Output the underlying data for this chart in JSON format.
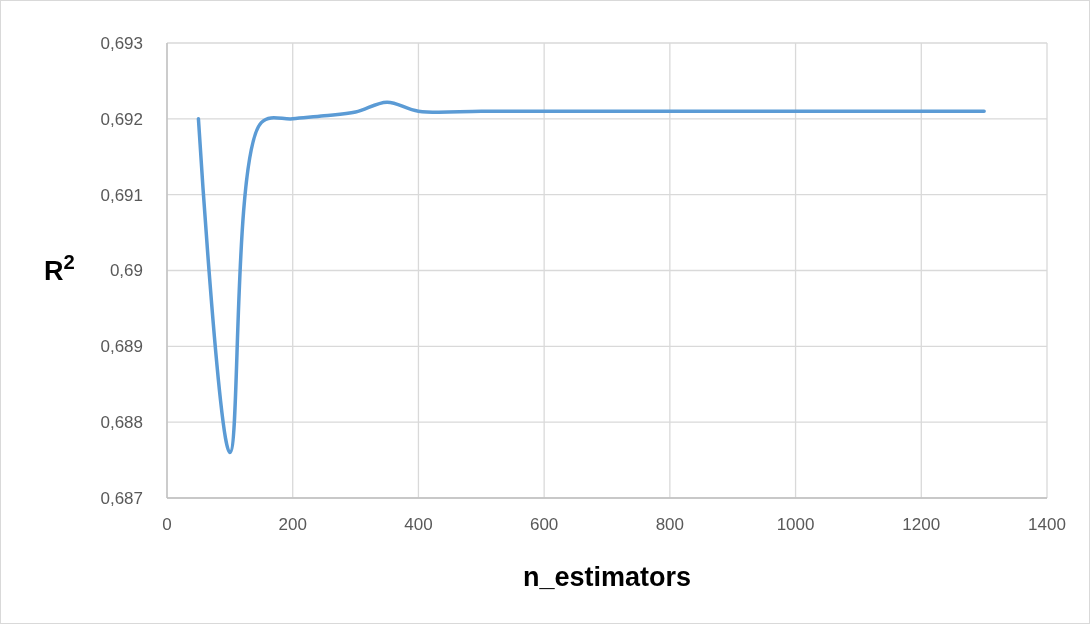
{
  "chart_data": {
    "type": "line",
    "xlabel": "n_estimators",
    "ylabel": "R$^{2}$",
    "x": [
      50,
      100,
      150,
      200,
      250,
      300,
      350,
      400,
      500,
      600,
      700,
      800,
      900,
      1000,
      1100,
      1200,
      1300
    ],
    "series": [
      {
        "color": "#5b9bd5",
        "values": [
          0.692,
          0.6876,
          0.69195,
          0.692,
          0.69204,
          0.69209,
          0.69222,
          0.6921,
          0.6921,
          0.6921,
          0.6921,
          0.6921,
          0.6921,
          0.6921,
          0.6921,
          0.6921,
          0.6921
        ]
      }
    ],
    "xlim": [
      0,
      1400
    ],
    "xticks": [
      0,
      200,
      400,
      600,
      800,
      1000,
      1200,
      1400
    ],
    "ylim": [
      0.687,
      0.693
    ],
    "yticks": [
      {
        "value": 0.687,
        "label": "0,687"
      },
      {
        "value": 0.688,
        "label": "0,688"
      },
      {
        "value": 0.689,
        "label": "0,689"
      },
      {
        "value": 0.69,
        "label": "0,69"
      },
      {
        "value": 0.691,
        "label": "0,691"
      },
      {
        "value": 0.692,
        "label": "0,692"
      },
      {
        "value": 0.693,
        "label": "0,693"
      }
    ],
    "grid": true,
    "marker": "none",
    "line_style": "solid"
  }
}
